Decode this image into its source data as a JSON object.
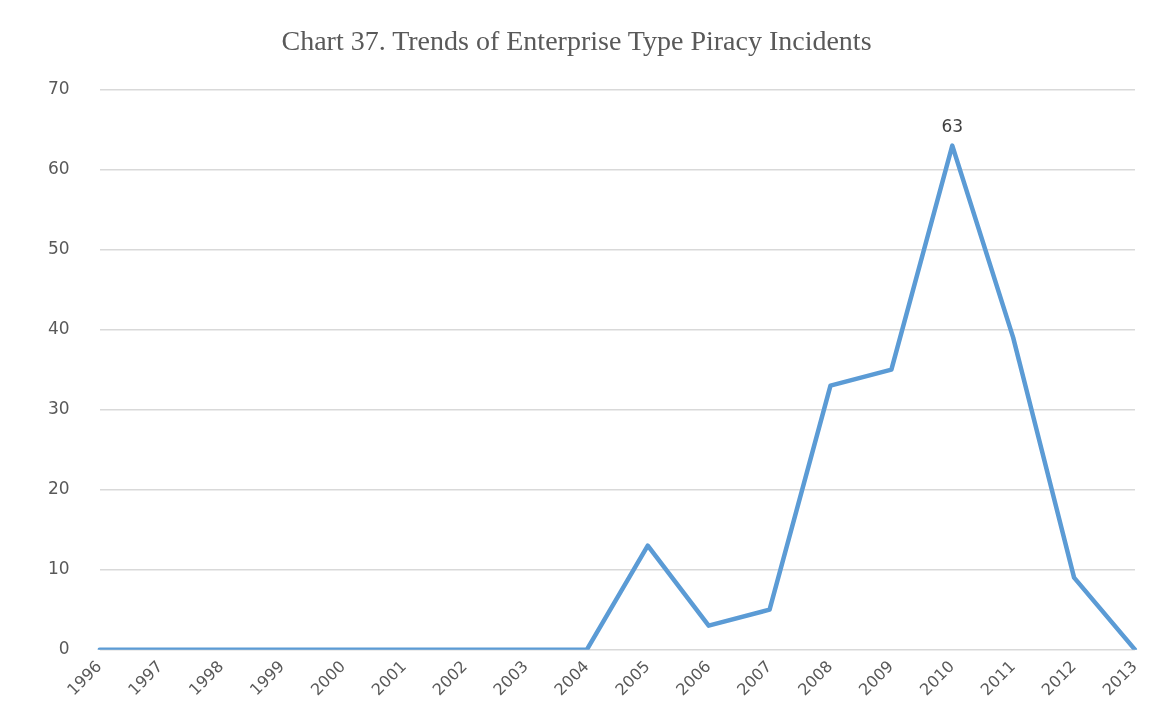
{
  "chart_data": {
    "type": "line",
    "title": "Chart 37. Trends of Enterprise Type Piracy Incidents",
    "categories": [
      "1996",
      "1997",
      "1998",
      "1999",
      "2000",
      "2001",
      "2002",
      "2003",
      "2004",
      "2005",
      "2006",
      "2007",
      "2008",
      "2009",
      "2010",
      "2011",
      "2012",
      "2013"
    ],
    "series": [
      {
        "color": "#5b9bd5",
        "values": [
          0,
          0,
          0,
          0,
          0,
          0,
          0,
          0,
          0,
          13,
          3,
          5,
          33,
          35,
          63,
          39,
          9,
          0
        ],
        "value_labels": [
          null,
          null,
          null,
          null,
          null,
          null,
          null,
          null,
          null,
          null,
          null,
          null,
          null,
          null,
          "63",
          null,
          null,
          null
        ]
      }
    ],
    "ylim": [
      0,
      70
    ],
    "yticks": [
      0,
      10,
      20,
      30,
      40,
      50,
      60,
      70
    ],
    "grid": "y",
    "legend": false,
    "marker": "none",
    "line_style": "solid"
  }
}
